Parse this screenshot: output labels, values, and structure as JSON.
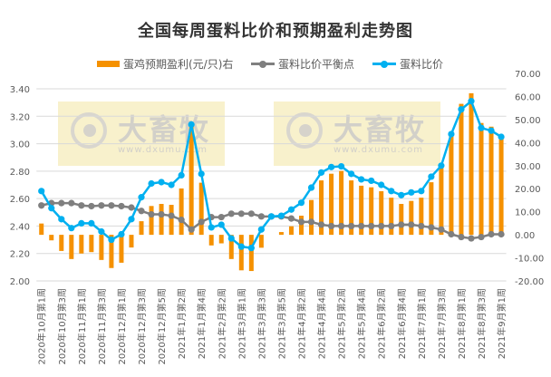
{
  "chart_data": {
    "type": "bar+line",
    "title": "全国每周蛋料比价和预期盈利走势图",
    "watermark": {
      "brand": "大畜牧",
      "url": "www.dxumu.com"
    },
    "categories": [
      "2020年10月第1周",
      "",
      "2020年10月第3周",
      "",
      "2020年11月第1周",
      "",
      "2020年11月第3周",
      "",
      "2020年12月第1周",
      "",
      "2020年12月第3周",
      "",
      "2020年12月第5周",
      "",
      "2021年1月第2周",
      "",
      "2021年1月第4周",
      "",
      "2021年2月第2周",
      "",
      "2021年3月第1周",
      "",
      "2021年3月第3周",
      "",
      "2021年3月第5周",
      "",
      "2021年4月第2周",
      "",
      "2021年4月第4周",
      "",
      "2021年5月第2周",
      "",
      "2021年5月第4周",
      "",
      "2021年6月第2周",
      "",
      "2021年6月第4周",
      "",
      "2021年7月第1周",
      "",
      "2021年7月第3周",
      "",
      "2021年8月第1周",
      "",
      "2021年8月第3周",
      "",
      "2021年9月第1周"
    ],
    "left_axis": {
      "ylim": [
        2.0,
        3.4
      ],
      "ticks": [
        "2.00",
        "2.20",
        "2.40",
        "2.60",
        "2.80",
        "3.00",
        "3.20",
        "3.40"
      ]
    },
    "right_axis": {
      "ylim": [
        -20,
        70
      ],
      "ticks": [
        "-20.00",
        "-10.00",
        "0.00",
        "10.00",
        "20.00",
        "30.00",
        "40.00",
        "50.00",
        "60.00",
        "70.00"
      ]
    },
    "grid": true,
    "legend_position": "top",
    "series": [
      {
        "name": "蛋鸡预期盈利(元/只)右",
        "type": "bar",
        "axis": "right",
        "color": "#f59100",
        "values": [
          4.9,
          -2.4,
          -7.0,
          -10.5,
          -8.1,
          -7.5,
          -10.9,
          -14.4,
          -12.1,
          -5.5,
          5.9,
          12.5,
          13.4,
          13.0,
          20.1,
          47.0,
          22.6,
          -4.6,
          -3.7,
          -10.5,
          -15.4,
          -15.7,
          -5.6,
          0,
          1.2,
          3.7,
          8.3,
          15.1,
          23.6,
          26.5,
          27.7,
          23.6,
          21.3,
          20.6,
          18.9,
          16.1,
          13.4,
          14.7,
          16.1,
          22.8,
          28.9,
          43.3,
          56.8,
          61.4,
          48.5,
          46.9,
          42.6
        ]
      },
      {
        "name": "蛋料比价平衡点",
        "type": "line",
        "axis": "left",
        "color": "#7f7f7f",
        "values": [
          2.55,
          2.567,
          2.567,
          2.567,
          2.55,
          2.545,
          2.55,
          2.55,
          2.545,
          2.535,
          2.51,
          2.485,
          2.485,
          2.475,
          2.445,
          2.375,
          2.43,
          2.465,
          2.465,
          2.49,
          2.49,
          2.49,
          2.47,
          2.47,
          2.47,
          2.455,
          2.43,
          2.43,
          2.41,
          2.4,
          2.4,
          2.4,
          2.4,
          2.4,
          2.4,
          2.4,
          2.41,
          2.41,
          2.4,
          2.39,
          2.375,
          2.34,
          2.32,
          2.31,
          2.32,
          2.34,
          2.34
        ]
      },
      {
        "name": "蛋料比价",
        "type": "line",
        "axis": "left",
        "color": "#00b0f0",
        "values": [
          2.655,
          2.53,
          2.45,
          2.385,
          2.42,
          2.42,
          2.36,
          2.3,
          2.34,
          2.45,
          2.61,
          2.71,
          2.72,
          2.7,
          2.77,
          3.14,
          2.78,
          2.39,
          2.41,
          2.31,
          2.25,
          2.24,
          2.375,
          2.47,
          2.475,
          2.52,
          2.57,
          2.68,
          2.79,
          2.83,
          2.835,
          2.78,
          2.74,
          2.73,
          2.7,
          2.655,
          2.625,
          2.645,
          2.655,
          2.76,
          2.84,
          3.07,
          3.25,
          3.31,
          3.115,
          3.095,
          3.05
        ]
      }
    ]
  }
}
